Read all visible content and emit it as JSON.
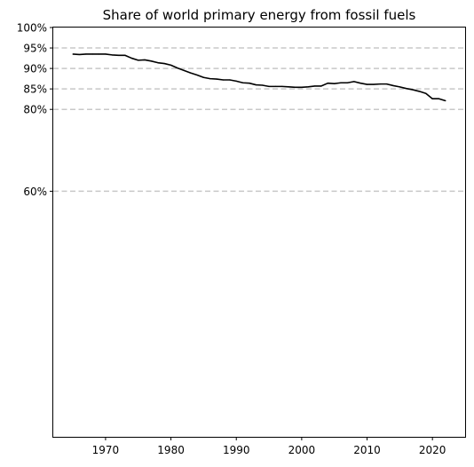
{
  "chart_data": {
    "type": "line",
    "title": "Share of world primary energy from fossil fuels",
    "xlabel": "",
    "ylabel": "",
    "xlim": [
      1962,
      2025
    ],
    "ylim": [
      0,
      100
    ],
    "x_ticks": [
      1970,
      1980,
      1990,
      2000,
      2010,
      2020
    ],
    "x_tick_labels": [
      "1970",
      "1980",
      "1990",
      "2000",
      "2010",
      "2020"
    ],
    "y_ticks": [
      60,
      80,
      85,
      90,
      95,
      100
    ],
    "y_tick_labels": [
      "60%",
      "80%",
      "85%",
      "90%",
      "95%",
      "100%"
    ],
    "gridlines_y": [
      60,
      80,
      85,
      90,
      95
    ],
    "grid_style": "dashed",
    "grid_color": "#c8c8c8",
    "line_color": "#000000",
    "series": [
      {
        "x": [
          1965,
          1966,
          1967,
          1968,
          1969,
          1970,
          1971,
          1972,
          1973,
          1974,
          1975,
          1976,
          1977,
          1978,
          1979,
          1980,
          1981,
          1982,
          1983,
          1984,
          1985,
          1986,
          1987,
          1988,
          1989,
          1990,
          1991,
          1992,
          1993,
          1994,
          1995,
          1996,
          1997,
          1998,
          1999,
          2000,
          2001,
          2002,
          2003,
          2004,
          2005,
          2006,
          2007,
          2008,
          2009,
          2010,
          2011,
          2012,
          2013,
          2014,
          2015,
          2016,
          2017,
          2018,
          2019,
          2020,
          2021,
          2022
        ],
        "values": [
          93.5,
          93.4,
          93.5,
          93.5,
          93.5,
          93.5,
          93.3,
          93.2,
          93.2,
          92.5,
          92.0,
          92.1,
          91.8,
          91.4,
          91.2,
          90.8,
          90.1,
          89.5,
          88.9,
          88.4,
          87.8,
          87.5,
          87.4,
          87.2,
          87.2,
          86.9,
          86.5,
          86.4,
          86.0,
          85.9,
          85.6,
          85.6,
          85.6,
          85.5,
          85.4,
          85.4,
          85.5,
          85.7,
          85.7,
          86.4,
          86.3,
          86.5,
          86.5,
          86.8,
          86.4,
          86.1,
          86.1,
          86.2,
          86.2,
          85.8,
          85.5,
          85.1,
          84.8,
          84.4,
          83.9,
          82.6,
          82.6,
          82.1
        ]
      }
    ]
  }
}
